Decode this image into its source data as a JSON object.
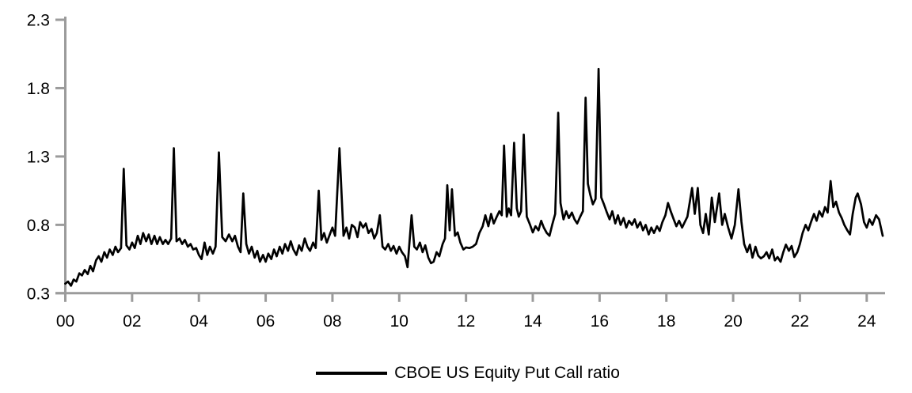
{
  "legend": {
    "label": "CBOE US Equity Put Call ratio"
  },
  "colors": {
    "background": "#ffffff",
    "axis": "#9b9b9b",
    "series": "#000000",
    "text": "#000000"
  },
  "chart_data": {
    "type": "line",
    "title": "",
    "xlabel": "",
    "ylabel": "",
    "grid": false,
    "legend_position": "bottom-center",
    "x_range": [
      0,
      24.55
    ],
    "y_range": [
      0.3,
      2.3
    ],
    "x_ticks": [
      0,
      2,
      4,
      6,
      8,
      10,
      12,
      14,
      16,
      18,
      20,
      22,
      24
    ],
    "x_tick_labels": [
      "00",
      "02",
      "04",
      "06",
      "08",
      "10",
      "12",
      "14",
      "16",
      "18",
      "20",
      "22",
      "24"
    ],
    "y_ticks": [
      0.3,
      0.8,
      1.3,
      1.8,
      2.3
    ],
    "y_tick_labels": [
      "0.3",
      "0.8",
      "1.3",
      "1.8",
      "2.3"
    ],
    "series": [
      {
        "name": "CBOE US Equity Put Call ratio",
        "color": "#000000",
        "points": [
          [
            0.0,
            0.37
          ],
          [
            0.08,
            0.385
          ],
          [
            0.17,
            0.355
          ],
          [
            0.25,
            0.4
          ],
          [
            0.33,
            0.385
          ],
          [
            0.42,
            0.445
          ],
          [
            0.5,
            0.43
          ],
          [
            0.58,
            0.47
          ],
          [
            0.67,
            0.44
          ],
          [
            0.75,
            0.5
          ],
          [
            0.83,
            0.46
          ],
          [
            0.92,
            0.54
          ],
          [
            1.0,
            0.57
          ],
          [
            1.08,
            0.53
          ],
          [
            1.17,
            0.6
          ],
          [
            1.25,
            0.56
          ],
          [
            1.33,
            0.62
          ],
          [
            1.42,
            0.58
          ],
          [
            1.5,
            0.64
          ],
          [
            1.58,
            0.6
          ],
          [
            1.67,
            0.63
          ],
          [
            1.75,
            1.21
          ],
          [
            1.83,
            0.65
          ],
          [
            1.92,
            0.62
          ],
          [
            2.0,
            0.67
          ],
          [
            2.08,
            0.63
          ],
          [
            2.17,
            0.72
          ],
          [
            2.25,
            0.66
          ],
          [
            2.33,
            0.74
          ],
          [
            2.42,
            0.68
          ],
          [
            2.5,
            0.73
          ],
          [
            2.58,
            0.66
          ],
          [
            2.67,
            0.72
          ],
          [
            2.75,
            0.66
          ],
          [
            2.83,
            0.71
          ],
          [
            2.92,
            0.66
          ],
          [
            3.0,
            0.69
          ],
          [
            3.08,
            0.66
          ],
          [
            3.17,
            0.7
          ],
          [
            3.25,
            1.36
          ],
          [
            3.33,
            0.68
          ],
          [
            3.42,
            0.7
          ],
          [
            3.5,
            0.66
          ],
          [
            3.58,
            0.69
          ],
          [
            3.67,
            0.64
          ],
          [
            3.75,
            0.66
          ],
          [
            3.83,
            0.62
          ],
          [
            3.92,
            0.63
          ],
          [
            4.0,
            0.58
          ],
          [
            4.08,
            0.55
          ],
          [
            4.17,
            0.67
          ],
          [
            4.25,
            0.58
          ],
          [
            4.33,
            0.64
          ],
          [
            4.42,
            0.59
          ],
          [
            4.5,
            0.64
          ],
          [
            4.6,
            1.33
          ],
          [
            4.7,
            0.71
          ],
          [
            4.8,
            0.68
          ],
          [
            4.9,
            0.73
          ],
          [
            5.0,
            0.68
          ],
          [
            5.08,
            0.72
          ],
          [
            5.17,
            0.64
          ],
          [
            5.25,
            0.6
          ],
          [
            5.33,
            1.03
          ],
          [
            5.42,
            0.66
          ],
          [
            5.5,
            0.59
          ],
          [
            5.58,
            0.64
          ],
          [
            5.67,
            0.56
          ],
          [
            5.75,
            0.61
          ],
          [
            5.83,
            0.53
          ],
          [
            5.92,
            0.58
          ],
          [
            6.0,
            0.53
          ],
          [
            6.08,
            0.59
          ],
          [
            6.17,
            0.55
          ],
          [
            6.25,
            0.62
          ],
          [
            6.33,
            0.57
          ],
          [
            6.42,
            0.64
          ],
          [
            6.5,
            0.59
          ],
          [
            6.58,
            0.66
          ],
          [
            6.67,
            0.61
          ],
          [
            6.75,
            0.68
          ],
          [
            6.83,
            0.62
          ],
          [
            6.92,
            0.58
          ],
          [
            7.0,
            0.65
          ],
          [
            7.08,
            0.61
          ],
          [
            7.17,
            0.7
          ],
          [
            7.25,
            0.64
          ],
          [
            7.33,
            0.61
          ],
          [
            7.42,
            0.67
          ],
          [
            7.5,
            0.63
          ],
          [
            7.59,
            1.05
          ],
          [
            7.67,
            0.69
          ],
          [
            7.75,
            0.74
          ],
          [
            7.83,
            0.67
          ],
          [
            7.92,
            0.73
          ],
          [
            8.0,
            0.78
          ],
          [
            8.08,
            0.72
          ],
          [
            8.21,
            1.36
          ],
          [
            8.33,
            0.72
          ],
          [
            8.42,
            0.78
          ],
          [
            8.5,
            0.7
          ],
          [
            8.58,
            0.8
          ],
          [
            8.67,
            0.78
          ],
          [
            8.75,
            0.71
          ],
          [
            8.83,
            0.82
          ],
          [
            8.92,
            0.78
          ],
          [
            9.0,
            0.81
          ],
          [
            9.08,
            0.74
          ],
          [
            9.17,
            0.77
          ],
          [
            9.25,
            0.7
          ],
          [
            9.33,
            0.74
          ],
          [
            9.42,
            0.87
          ],
          [
            9.5,
            0.64
          ],
          [
            9.58,
            0.62
          ],
          [
            9.67,
            0.66
          ],
          [
            9.75,
            0.61
          ],
          [
            9.83,
            0.645
          ],
          [
            9.92,
            0.59
          ],
          [
            10.0,
            0.64
          ],
          [
            10.08,
            0.6
          ],
          [
            10.17,
            0.57
          ],
          [
            10.25,
            0.49
          ],
          [
            10.37,
            0.87
          ],
          [
            10.45,
            0.64
          ],
          [
            10.53,
            0.62
          ],
          [
            10.62,
            0.67
          ],
          [
            10.7,
            0.6
          ],
          [
            10.78,
            0.65
          ],
          [
            10.87,
            0.56
          ],
          [
            10.95,
            0.52
          ],
          [
            11.03,
            0.53
          ],
          [
            11.12,
            0.6
          ],
          [
            11.2,
            0.57
          ],
          [
            11.3,
            0.66
          ],
          [
            11.37,
            0.7
          ],
          [
            11.44,
            1.09
          ],
          [
            11.51,
            0.76
          ],
          [
            11.58,
            1.06
          ],
          [
            11.67,
            0.72
          ],
          [
            11.75,
            0.745
          ],
          [
            11.83,
            0.67
          ],
          [
            11.92,
            0.62
          ],
          [
            12.0,
            0.635
          ],
          [
            12.1,
            0.63
          ],
          [
            12.2,
            0.64
          ],
          [
            12.3,
            0.66
          ],
          [
            12.4,
            0.74
          ],
          [
            12.5,
            0.79
          ],
          [
            12.58,
            0.87
          ],
          [
            12.67,
            0.79
          ],
          [
            12.75,
            0.88
          ],
          [
            12.83,
            0.81
          ],
          [
            12.92,
            0.86
          ],
          [
            13.0,
            0.9
          ],
          [
            13.07,
            0.87
          ],
          [
            13.14,
            1.38
          ],
          [
            13.22,
            0.86
          ],
          [
            13.28,
            0.92
          ],
          [
            13.35,
            0.87
          ],
          [
            13.44,
            1.4
          ],
          [
            13.52,
            0.92
          ],
          [
            13.58,
            0.86
          ],
          [
            13.65,
            0.9
          ],
          [
            13.73,
            1.46
          ],
          [
            13.82,
            0.86
          ],
          [
            13.92,
            0.8
          ],
          [
            14.0,
            0.745
          ],
          [
            14.08,
            0.79
          ],
          [
            14.17,
            0.76
          ],
          [
            14.25,
            0.83
          ],
          [
            14.33,
            0.78
          ],
          [
            14.42,
            0.74
          ],
          [
            14.5,
            0.72
          ],
          [
            14.58,
            0.8
          ],
          [
            14.67,
            0.88
          ],
          [
            14.76,
            1.62
          ],
          [
            14.83,
            0.96
          ],
          [
            14.92,
            0.84
          ],
          [
            15.0,
            0.9
          ],
          [
            15.08,
            0.85
          ],
          [
            15.17,
            0.89
          ],
          [
            15.25,
            0.84
          ],
          [
            15.33,
            0.81
          ],
          [
            15.42,
            0.86
          ],
          [
            15.5,
            0.9
          ],
          [
            15.58,
            1.73
          ],
          [
            15.65,
            1.1
          ],
          [
            15.72,
            1.02
          ],
          [
            15.8,
            0.95
          ],
          [
            15.88,
            0.99
          ],
          [
            15.97,
            1.94
          ],
          [
            16.05,
            1.0
          ],
          [
            16.13,
            0.95
          ],
          [
            16.22,
            0.89
          ],
          [
            16.3,
            0.84
          ],
          [
            16.38,
            0.9
          ],
          [
            16.47,
            0.81
          ],
          [
            16.55,
            0.87
          ],
          [
            16.63,
            0.8
          ],
          [
            16.72,
            0.85
          ],
          [
            16.8,
            0.78
          ],
          [
            16.88,
            0.83
          ],
          [
            16.97,
            0.8
          ],
          [
            17.05,
            0.84
          ],
          [
            17.13,
            0.78
          ],
          [
            17.22,
            0.82
          ],
          [
            17.3,
            0.76
          ],
          [
            17.38,
            0.8
          ],
          [
            17.47,
            0.73
          ],
          [
            17.55,
            0.78
          ],
          [
            17.63,
            0.74
          ],
          [
            17.72,
            0.79
          ],
          [
            17.8,
            0.755
          ],
          [
            17.88,
            0.82
          ],
          [
            17.97,
            0.87
          ],
          [
            18.05,
            0.96
          ],
          [
            18.13,
            0.9
          ],
          [
            18.22,
            0.84
          ],
          [
            18.3,
            0.79
          ],
          [
            18.38,
            0.83
          ],
          [
            18.47,
            0.78
          ],
          [
            18.55,
            0.82
          ],
          [
            18.63,
            0.86
          ],
          [
            18.77,
            1.07
          ],
          [
            18.85,
            0.88
          ],
          [
            18.94,
            1.07
          ],
          [
            19.02,
            0.8
          ],
          [
            19.1,
            0.74
          ],
          [
            19.18,
            0.88
          ],
          [
            19.27,
            0.73
          ],
          [
            19.36,
            1.0
          ],
          [
            19.45,
            0.82
          ],
          [
            19.58,
            1.03
          ],
          [
            19.67,
            0.8
          ],
          [
            19.75,
            0.88
          ],
          [
            19.85,
            0.78
          ],
          [
            19.95,
            0.7
          ],
          [
            20.05,
            0.8
          ],
          [
            20.16,
            1.06
          ],
          [
            20.25,
            0.82
          ],
          [
            20.33,
            0.66
          ],
          [
            20.42,
            0.6
          ],
          [
            20.5,
            0.655
          ],
          [
            20.58,
            0.56
          ],
          [
            20.67,
            0.64
          ],
          [
            20.75,
            0.575
          ],
          [
            20.83,
            0.555
          ],
          [
            20.92,
            0.57
          ],
          [
            21.0,
            0.6
          ],
          [
            21.08,
            0.555
          ],
          [
            21.17,
            0.62
          ],
          [
            21.25,
            0.54
          ],
          [
            21.33,
            0.565
          ],
          [
            21.42,
            0.53
          ],
          [
            21.5,
            0.6
          ],
          [
            21.58,
            0.655
          ],
          [
            21.67,
            0.61
          ],
          [
            21.75,
            0.645
          ],
          [
            21.83,
            0.565
          ],
          [
            21.92,
            0.6
          ],
          [
            22.0,
            0.66
          ],
          [
            22.08,
            0.74
          ],
          [
            22.17,
            0.8
          ],
          [
            22.25,
            0.76
          ],
          [
            22.33,
            0.82
          ],
          [
            22.42,
            0.88
          ],
          [
            22.5,
            0.83
          ],
          [
            22.58,
            0.9
          ],
          [
            22.67,
            0.86
          ],
          [
            22.75,
            0.93
          ],
          [
            22.83,
            0.89
          ],
          [
            22.92,
            1.12
          ],
          [
            23.0,
            0.93
          ],
          [
            23.08,
            0.97
          ],
          [
            23.17,
            0.89
          ],
          [
            23.25,
            0.85
          ],
          [
            23.33,
            0.8
          ],
          [
            23.42,
            0.76
          ],
          [
            23.5,
            0.73
          ],
          [
            23.58,
            0.88
          ],
          [
            23.67,
            1.0
          ],
          [
            23.73,
            1.03
          ],
          [
            23.83,
            0.95
          ],
          [
            23.92,
            0.82
          ],
          [
            24.0,
            0.78
          ],
          [
            24.08,
            0.84
          ],
          [
            24.17,
            0.8
          ],
          [
            24.28,
            0.87
          ],
          [
            24.37,
            0.84
          ],
          [
            24.48,
            0.72
          ]
        ]
      }
    ]
  }
}
